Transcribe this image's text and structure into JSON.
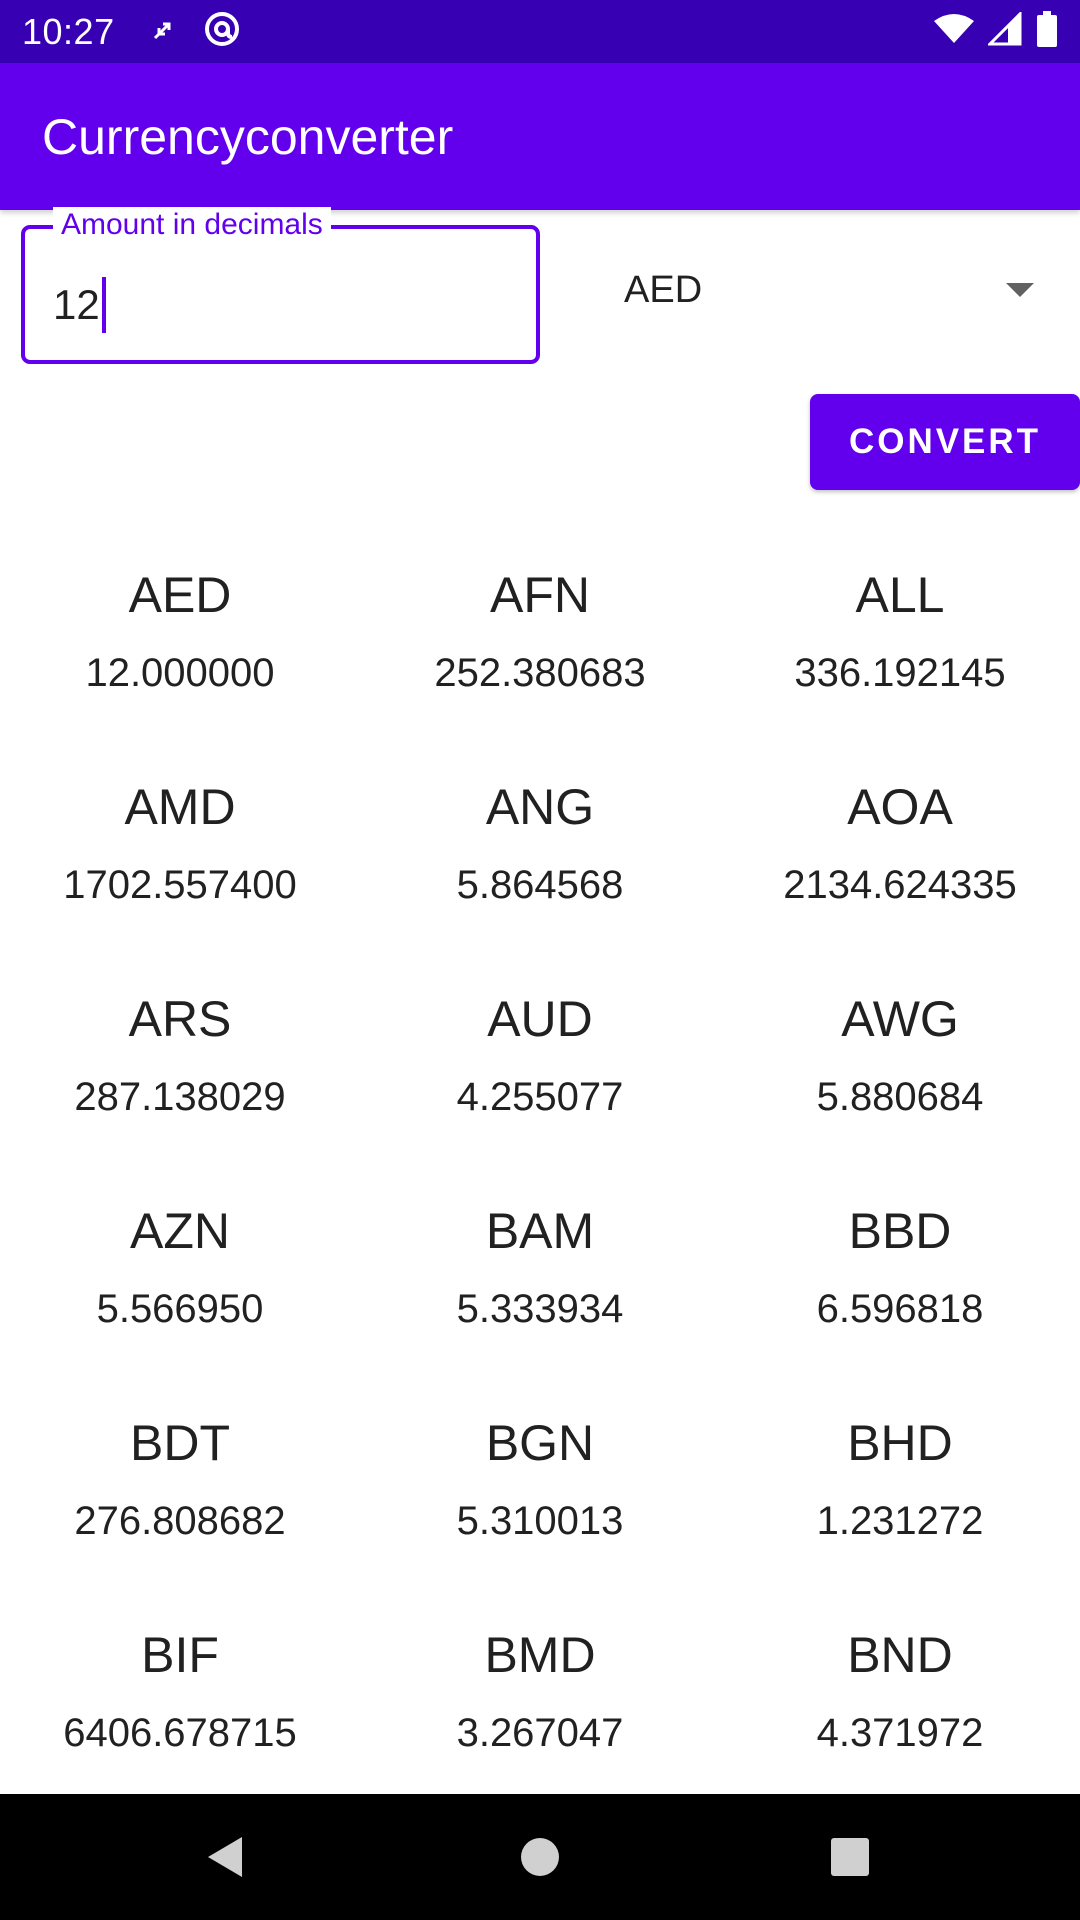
{
  "status_bar": {
    "time": "10:27"
  },
  "app_bar": {
    "title": "Currencyconverter"
  },
  "amount_field": {
    "label": "Amount in decimals",
    "value": "12"
  },
  "currency_select": {
    "selected": "AED"
  },
  "convert_button": {
    "label": "CONVERT"
  },
  "results": [
    {
      "code": "AED",
      "rate": "12.000000"
    },
    {
      "code": "AFN",
      "rate": "252.380683"
    },
    {
      "code": "ALL",
      "rate": "336.192145"
    },
    {
      "code": "AMD",
      "rate": "1702.557400"
    },
    {
      "code": "ANG",
      "rate": "5.864568"
    },
    {
      "code": "AOA",
      "rate": "2134.624335"
    },
    {
      "code": "ARS",
      "rate": "287.138029"
    },
    {
      "code": "AUD",
      "rate": "4.255077"
    },
    {
      "code": "AWG",
      "rate": "5.880684"
    },
    {
      "code": "AZN",
      "rate": "5.566950"
    },
    {
      "code": "BAM",
      "rate": "5.333934"
    },
    {
      "code": "BBD",
      "rate": "6.596818"
    },
    {
      "code": "BDT",
      "rate": "276.808682"
    },
    {
      "code": "BGN",
      "rate": "5.310013"
    },
    {
      "code": "BHD",
      "rate": "1.231272"
    },
    {
      "code": "BIF",
      "rate": "6406.678715"
    },
    {
      "code": "BMD",
      "rate": "3.267047"
    },
    {
      "code": "BND",
      "rate": "4.371972"
    }
  ],
  "icons": {
    "status_left": [
      "sync-arrows-icon",
      "at-sign-icon"
    ],
    "status_right": [
      "wifi-icon",
      "signal-icon",
      "battery-icon"
    ],
    "nav": [
      "back-icon",
      "home-icon",
      "recents-icon"
    ]
  },
  "colors": {
    "status_bar": "#3700b3",
    "primary": "#6200ee",
    "nav_bar": "#000000"
  }
}
